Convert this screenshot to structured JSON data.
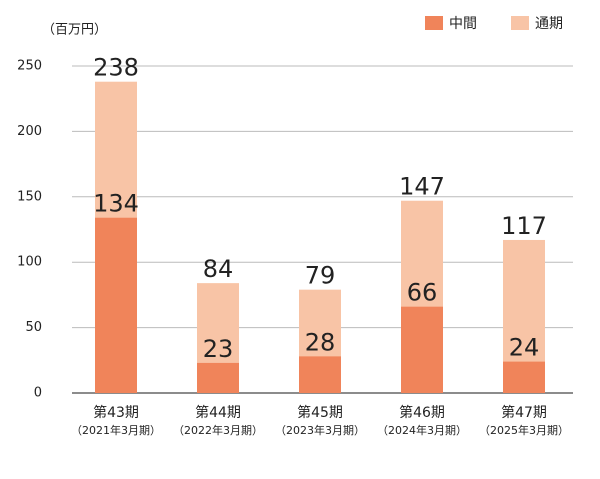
{
  "chart_data": {
    "type": "bar",
    "mode": "overlap",
    "y_unit_label": "（百万円）",
    "categories": [
      "第43期",
      "第44期",
      "第45期",
      "第46期",
      "第47期"
    ],
    "category_sublabels": [
      "（2021年3月期）",
      "（2022年3月期）",
      "（2023年3月期）",
      "（2024年3月期）",
      "（2025年3月期）"
    ],
    "series": [
      {
        "name": "通期",
        "color": "#f8c4a6",
        "values": [
          238,
          84,
          79,
          147,
          117
        ]
      },
      {
        "name": "中間",
        "color": "#f0845a",
        "values": [
          134,
          23,
          28,
          66,
          24
        ]
      }
    ],
    "legend_order": [
      1,
      0
    ],
    "ylim": [
      0,
      250
    ],
    "yticks": [
      0,
      50,
      100,
      150,
      200,
      250
    ],
    "grid": true
  }
}
